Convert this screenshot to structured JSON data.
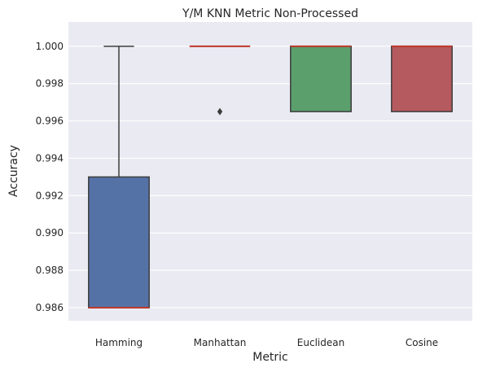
{
  "chart_data": {
    "type": "box",
    "title": "Y/M KNN Metric Non-Processed",
    "xlabel": "Metric",
    "ylabel": "Accuracy",
    "ylim": [
      0.9853,
      1.0013
    ],
    "yticks": [
      "0.986",
      "0.988",
      "0.990",
      "0.992",
      "0.994",
      "0.996",
      "0.998",
      "1.000"
    ],
    "yticks_values": [
      0.986,
      0.988,
      0.99,
      0.992,
      0.994,
      0.996,
      0.998,
      1.0
    ],
    "grid": true,
    "background": "#eaeaf2",
    "median_color": "#c0392b",
    "edge_color": "#3d3d3d",
    "categories": [
      "Hamming",
      "Manhattan",
      "Euclidean",
      "Cosine"
    ],
    "boxes": [
      {
        "name": "Hamming",
        "color": "#5572a6",
        "whislo": 0.986,
        "q1": 0.986,
        "med": 0.986,
        "q3": 0.993,
        "whishi": 1.0,
        "fliers": []
      },
      {
        "name": "Manhattan",
        "color": "#5a9f6c",
        "whislo": 1.0,
        "q1": 1.0,
        "med": 1.0,
        "q3": 1.0,
        "whishi": 1.0,
        "fliers": [
          0.9965
        ]
      },
      {
        "name": "Euclidean",
        "color": "#5a9f6c",
        "whislo": 0.9965,
        "q1": 0.9965,
        "med": 1.0,
        "q3": 1.0,
        "whishi": 1.0,
        "fliers": []
      },
      {
        "name": "Cosine",
        "color": "#b55a5e",
        "whislo": 0.9965,
        "q1": 0.9965,
        "med": 1.0,
        "q3": 1.0,
        "whishi": 1.0,
        "fliers": []
      }
    ]
  }
}
